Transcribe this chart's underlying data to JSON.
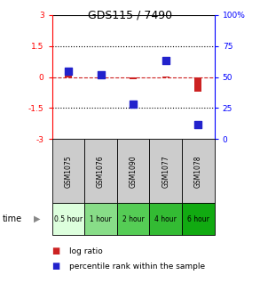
{
  "title": "GDS115 / 7490",
  "samples": [
    "GSM1075",
    "GSM1076",
    "GSM1090",
    "GSM1077",
    "GSM1078"
  ],
  "time_labels": [
    "0.5 hour",
    "1 hour",
    "2 hour",
    "4 hour",
    "6 hour"
  ],
  "time_colors": [
    "#ddffdd",
    "#88dd88",
    "#55cc55",
    "#33bb33",
    "#11aa11"
  ],
  "log_ratio": [
    0.1,
    0.05,
    -0.1,
    0.02,
    -0.7
  ],
  "percentile_rank": [
    55,
    52,
    28,
    63,
    12
  ],
  "ylim_left": [
    -3,
    3
  ],
  "ylim_right": [
    0,
    100
  ],
  "bar_color": "#cc2222",
  "dot_color": "#2222cc",
  "dashed_color": "#cc2222",
  "plot_bg": "#ffffff",
  "left_ticks": [
    -3,
    -1.5,
    0,
    1.5,
    3
  ],
  "right_ticks": [
    0,
    25,
    50,
    75,
    100
  ],
  "left_tick_labels": [
    "-3",
    "-1.5",
    "0",
    "1.5",
    "3"
  ],
  "right_tick_labels": [
    "0",
    "25",
    "50",
    "75",
    "100%"
  ],
  "sample_box_color": "#cccccc",
  "figsize": [
    2.93,
    3.36
  ],
  "dpi": 100
}
